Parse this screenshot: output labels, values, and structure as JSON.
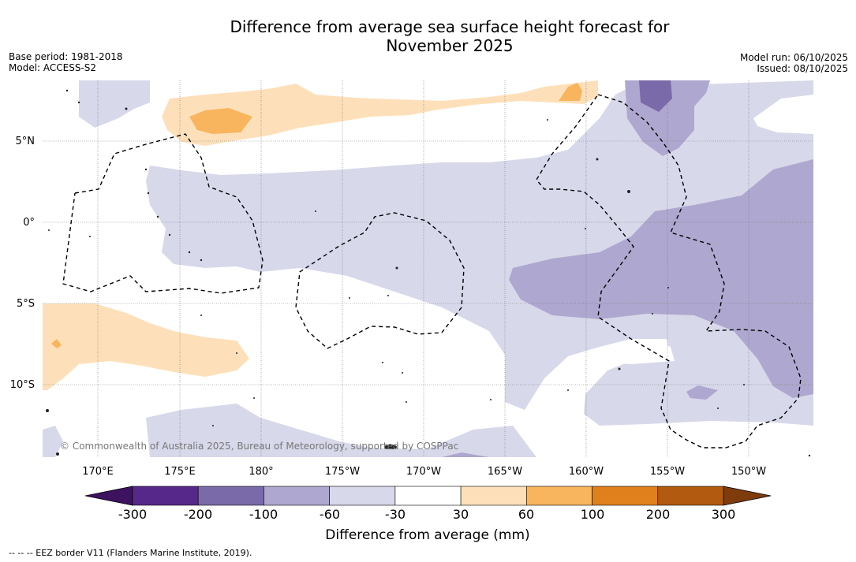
{
  "title_line1": "Difference from average sea surface height forecast for",
  "title_line2": "November 2025",
  "info": {
    "base_period": "Base period: 1981-2018",
    "model": "Model: ACCESS-S2",
    "model_run": "Model run: 06/10/2025",
    "issued": "Issued: 08/10/2025"
  },
  "map": {
    "lat_labels": [
      "5°N",
      "0°",
      "5°S",
      "10°S"
    ],
    "lon_labels": [
      "170°E",
      "175°E",
      "180°",
      "175°W",
      "170°W",
      "165°W",
      "160°W",
      "155°W",
      "150°W"
    ],
    "copyright": "© Commonwealth of Australia 2025, Bureau of Meteorology, supported by COSPPac"
  },
  "colorbar": {
    "title": "Difference from average (mm)",
    "tick_labels": [
      "-300",
      "-200",
      "-100",
      "-60",
      "-30",
      "30",
      "60",
      "100",
      "200",
      "300"
    ],
    "colors": [
      "#3d1260",
      "#56288a",
      "#7b6aa9",
      "#aea7cf",
      "#d7d8ea",
      "#ffffff",
      "#fde0b9",
      "#f9b45e",
      "#e0801c",
      "#b25a10",
      "#7e3b0c"
    ]
  },
  "footer": "--  --  -- EEZ border V11 (Flanders Marine Institute, 2019)."
}
